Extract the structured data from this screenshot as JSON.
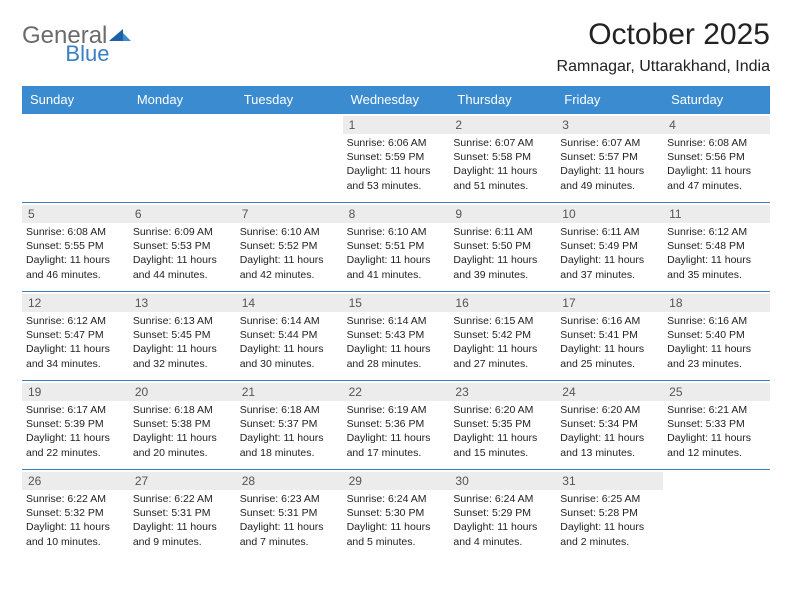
{
  "logo": {
    "text1": "General",
    "text2": "Blue"
  },
  "header": {
    "month_title": "October 2025",
    "location": "Ramnagar, Uttarakhand, India"
  },
  "colors": {
    "header_bg": "#3a8bd0",
    "rule": "#3a7fc4",
    "daynum_bg": "#ececec"
  },
  "weekdays": [
    "Sunday",
    "Monday",
    "Tuesday",
    "Wednesday",
    "Thursday",
    "Friday",
    "Saturday"
  ],
  "weeks": [
    [
      {
        "n": "",
        "sr": "",
        "ss": "",
        "d1": "",
        "d2": ""
      },
      {
        "n": "",
        "sr": "",
        "ss": "",
        "d1": "",
        "d2": ""
      },
      {
        "n": "",
        "sr": "",
        "ss": "",
        "d1": "",
        "d2": ""
      },
      {
        "n": "1",
        "sr": "Sunrise: 6:06 AM",
        "ss": "Sunset: 5:59 PM",
        "d1": "Daylight: 11 hours",
        "d2": "and 53 minutes."
      },
      {
        "n": "2",
        "sr": "Sunrise: 6:07 AM",
        "ss": "Sunset: 5:58 PM",
        "d1": "Daylight: 11 hours",
        "d2": "and 51 minutes."
      },
      {
        "n": "3",
        "sr": "Sunrise: 6:07 AM",
        "ss": "Sunset: 5:57 PM",
        "d1": "Daylight: 11 hours",
        "d2": "and 49 minutes."
      },
      {
        "n": "4",
        "sr": "Sunrise: 6:08 AM",
        "ss": "Sunset: 5:56 PM",
        "d1": "Daylight: 11 hours",
        "d2": "and 47 minutes."
      }
    ],
    [
      {
        "n": "5",
        "sr": "Sunrise: 6:08 AM",
        "ss": "Sunset: 5:55 PM",
        "d1": "Daylight: 11 hours",
        "d2": "and 46 minutes."
      },
      {
        "n": "6",
        "sr": "Sunrise: 6:09 AM",
        "ss": "Sunset: 5:53 PM",
        "d1": "Daylight: 11 hours",
        "d2": "and 44 minutes."
      },
      {
        "n": "7",
        "sr": "Sunrise: 6:10 AM",
        "ss": "Sunset: 5:52 PM",
        "d1": "Daylight: 11 hours",
        "d2": "and 42 minutes."
      },
      {
        "n": "8",
        "sr": "Sunrise: 6:10 AM",
        "ss": "Sunset: 5:51 PM",
        "d1": "Daylight: 11 hours",
        "d2": "and 41 minutes."
      },
      {
        "n": "9",
        "sr": "Sunrise: 6:11 AM",
        "ss": "Sunset: 5:50 PM",
        "d1": "Daylight: 11 hours",
        "d2": "and 39 minutes."
      },
      {
        "n": "10",
        "sr": "Sunrise: 6:11 AM",
        "ss": "Sunset: 5:49 PM",
        "d1": "Daylight: 11 hours",
        "d2": "and 37 minutes."
      },
      {
        "n": "11",
        "sr": "Sunrise: 6:12 AM",
        "ss": "Sunset: 5:48 PM",
        "d1": "Daylight: 11 hours",
        "d2": "and 35 minutes."
      }
    ],
    [
      {
        "n": "12",
        "sr": "Sunrise: 6:12 AM",
        "ss": "Sunset: 5:47 PM",
        "d1": "Daylight: 11 hours",
        "d2": "and 34 minutes."
      },
      {
        "n": "13",
        "sr": "Sunrise: 6:13 AM",
        "ss": "Sunset: 5:45 PM",
        "d1": "Daylight: 11 hours",
        "d2": "and 32 minutes."
      },
      {
        "n": "14",
        "sr": "Sunrise: 6:14 AM",
        "ss": "Sunset: 5:44 PM",
        "d1": "Daylight: 11 hours",
        "d2": "and 30 minutes."
      },
      {
        "n": "15",
        "sr": "Sunrise: 6:14 AM",
        "ss": "Sunset: 5:43 PM",
        "d1": "Daylight: 11 hours",
        "d2": "and 28 minutes."
      },
      {
        "n": "16",
        "sr": "Sunrise: 6:15 AM",
        "ss": "Sunset: 5:42 PM",
        "d1": "Daylight: 11 hours",
        "d2": "and 27 minutes."
      },
      {
        "n": "17",
        "sr": "Sunrise: 6:16 AM",
        "ss": "Sunset: 5:41 PM",
        "d1": "Daylight: 11 hours",
        "d2": "and 25 minutes."
      },
      {
        "n": "18",
        "sr": "Sunrise: 6:16 AM",
        "ss": "Sunset: 5:40 PM",
        "d1": "Daylight: 11 hours",
        "d2": "and 23 minutes."
      }
    ],
    [
      {
        "n": "19",
        "sr": "Sunrise: 6:17 AM",
        "ss": "Sunset: 5:39 PM",
        "d1": "Daylight: 11 hours",
        "d2": "and 22 minutes."
      },
      {
        "n": "20",
        "sr": "Sunrise: 6:18 AM",
        "ss": "Sunset: 5:38 PM",
        "d1": "Daylight: 11 hours",
        "d2": "and 20 minutes."
      },
      {
        "n": "21",
        "sr": "Sunrise: 6:18 AM",
        "ss": "Sunset: 5:37 PM",
        "d1": "Daylight: 11 hours",
        "d2": "and 18 minutes."
      },
      {
        "n": "22",
        "sr": "Sunrise: 6:19 AM",
        "ss": "Sunset: 5:36 PM",
        "d1": "Daylight: 11 hours",
        "d2": "and 17 minutes."
      },
      {
        "n": "23",
        "sr": "Sunrise: 6:20 AM",
        "ss": "Sunset: 5:35 PM",
        "d1": "Daylight: 11 hours",
        "d2": "and 15 minutes."
      },
      {
        "n": "24",
        "sr": "Sunrise: 6:20 AM",
        "ss": "Sunset: 5:34 PM",
        "d1": "Daylight: 11 hours",
        "d2": "and 13 minutes."
      },
      {
        "n": "25",
        "sr": "Sunrise: 6:21 AM",
        "ss": "Sunset: 5:33 PM",
        "d1": "Daylight: 11 hours",
        "d2": "and 12 minutes."
      }
    ],
    [
      {
        "n": "26",
        "sr": "Sunrise: 6:22 AM",
        "ss": "Sunset: 5:32 PM",
        "d1": "Daylight: 11 hours",
        "d2": "and 10 minutes."
      },
      {
        "n": "27",
        "sr": "Sunrise: 6:22 AM",
        "ss": "Sunset: 5:31 PM",
        "d1": "Daylight: 11 hours",
        "d2": "and 9 minutes."
      },
      {
        "n": "28",
        "sr": "Sunrise: 6:23 AM",
        "ss": "Sunset: 5:31 PM",
        "d1": "Daylight: 11 hours",
        "d2": "and 7 minutes."
      },
      {
        "n": "29",
        "sr": "Sunrise: 6:24 AM",
        "ss": "Sunset: 5:30 PM",
        "d1": "Daylight: 11 hours",
        "d2": "and 5 minutes."
      },
      {
        "n": "30",
        "sr": "Sunrise: 6:24 AM",
        "ss": "Sunset: 5:29 PM",
        "d1": "Daylight: 11 hours",
        "d2": "and 4 minutes."
      },
      {
        "n": "31",
        "sr": "Sunrise: 6:25 AM",
        "ss": "Sunset: 5:28 PM",
        "d1": "Daylight: 11 hours",
        "d2": "and 2 minutes."
      },
      {
        "n": "",
        "sr": "",
        "ss": "",
        "d1": "",
        "d2": ""
      }
    ]
  ]
}
